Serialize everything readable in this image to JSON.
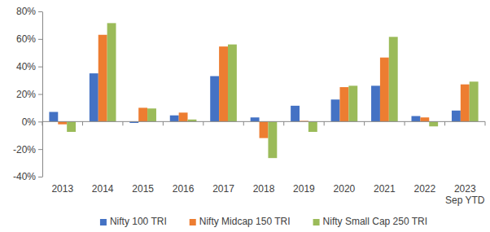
{
  "chart_data": {
    "type": "bar",
    "categories": [
      "2013",
      "2014",
      "2015",
      "2016",
      "2017",
      "2018",
      "2019",
      "2020",
      "2021",
      "2022",
      "2023 Sep YTD"
    ],
    "series": [
      {
        "name": "Nifty 100 TRI",
        "color": "#4472c4",
        "values": [
          7,
          35,
          -1,
          4.5,
          33,
          3,
          11.5,
          16,
          26,
          4,
          8
        ]
      },
      {
        "name": "Nifty Midcap 150 TRI",
        "color": "#ed7d31",
        "values": [
          -2,
          63,
          10,
          6.5,
          54.5,
          -12,
          0.5,
          25,
          46.5,
          3,
          27
        ]
      },
      {
        "name": "Nifty Small Cap 250 TRI",
        "color": "#9bbb59",
        "values": [
          -7.5,
          71.5,
          9.5,
          1.5,
          56,
          -26.5,
          -7.5,
          26,
          61.5,
          -3.5,
          29
        ]
      }
    ],
    "ylim": [
      -40,
      80
    ],
    "yticks": [
      {
        "value": -40,
        "label": "-40%"
      },
      {
        "value": -20,
        "label": "-20%"
      },
      {
        "value": 0,
        "label": "0%"
      },
      {
        "value": 20,
        "label": "20%"
      },
      {
        "value": 40,
        "label": "40%"
      },
      {
        "value": 60,
        "label": "60%"
      },
      {
        "value": 80,
        "label": "80%"
      }
    ],
    "grid": false,
    "legend": "bottom"
  }
}
